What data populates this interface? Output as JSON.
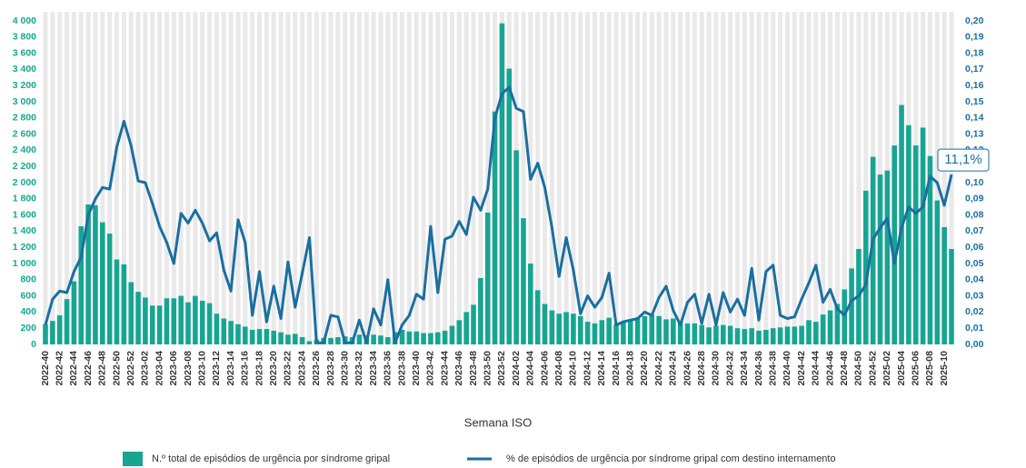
{
  "chart_data": {
    "type": "bar-line",
    "x_label": "Semana ISO",
    "annotation": "11,1%",
    "categories": [
      "2022-40",
      null,
      "2022-42",
      null,
      "2022-44",
      null,
      "2022-46",
      null,
      "2022-48",
      null,
      "2022-50",
      null,
      "2022-52",
      null,
      "2023-02",
      null,
      "2023-04",
      null,
      "2023-06",
      null,
      "2023-08",
      null,
      "2023-10",
      null,
      "2023-12",
      null,
      "2023-14",
      null,
      "2023-16",
      null,
      "2023-18",
      null,
      "2023-20",
      null,
      "2023-22",
      null,
      "2023-24",
      null,
      "2023-26",
      null,
      "2023-28",
      null,
      "2023-30",
      null,
      "2023-32",
      null,
      "2023-34",
      null,
      "2023-36",
      null,
      "2023-38",
      null,
      "2023-40",
      null,
      "2023-42",
      null,
      "2023-44",
      null,
      "2023-46",
      null,
      "2023-48",
      null,
      "2023-50",
      null,
      "2023-52",
      null,
      "2024-02",
      null,
      "2024-04",
      null,
      "2024-06",
      null,
      "2024-08",
      null,
      "2024-10",
      null,
      "2024-12",
      null,
      "2024-14",
      null,
      "2024-16",
      null,
      "2024-18",
      null,
      "2024-20",
      null,
      "2024-22",
      null,
      "2024-24",
      null,
      "2024-26",
      null,
      "2024-28",
      null,
      "2024-30",
      null,
      "2024-32",
      null,
      "2024-34",
      null,
      "2024-36",
      null,
      "2024-38",
      null,
      "2024-40",
      null,
      "2024-42",
      null,
      "2024-44",
      null,
      "2024-46",
      null,
      "2024-48",
      null,
      "2024-50",
      null,
      "2024-52",
      null,
      "2025-02",
      null,
      "2025-04",
      null,
      "2025-06",
      null,
      "2025-08",
      null,
      "2025-10",
      null
    ],
    "series": [
      {
        "name": "N.º total de episódios de urgência por síndrome gripal",
        "type": "bar",
        "color": "#17a592",
        "values": [
          250,
          290,
          360,
          560,
          780,
          1460,
          1730,
          1720,
          1510,
          1370,
          1050,
          990,
          770,
          650,
          580,
          480,
          480,
          570,
          570,
          600,
          520,
          600,
          540,
          510,
          380,
          320,
          290,
          250,
          220,
          180,
          190,
          190,
          170,
          150,
          120,
          130,
          90,
          40,
          60,
          80,
          80,
          90,
          100,
          90,
          120,
          110,
          120,
          110,
          90,
          150,
          180,
          160,
          160,
          140,
          140,
          150,
          170,
          230,
          300,
          400,
          490,
          820,
          1630,
          2880,
          3970,
          3410,
          2400,
          1560,
          1000,
          670,
          500,
          420,
          380,
          400,
          380,
          350,
          280,
          260,
          300,
          330,
          250,
          280,
          300,
          320,
          350,
          370,
          350,
          310,
          320,
          280,
          260,
          260,
          240,
          210,
          230,
          240,
          230,
          200,
          190,
          200,
          170,
          180,
          200,
          210,
          220,
          220,
          230,
          300,
          280,
          370,
          420,
          500,
          680,
          940,
          1180,
          1900,
          2320,
          2100,
          2150,
          2460,
          2960,
          2710,
          2460,
          2680,
          2330,
          1780,
          1450,
          1180
        ]
      },
      {
        "name": "% de episódios de urgência por síndrome gripal com destino internamento",
        "type": "line",
        "axis": "y2",
        "color": "#1a6fa0",
        "values": [
          0.012,
          0.028,
          0.033,
          0.032,
          0.045,
          0.054,
          0.08,
          0.09,
          0.097,
          0.096,
          0.122,
          0.138,
          0.123,
          0.101,
          0.1,
          0.087,
          0.073,
          0.063,
          0.05,
          0.081,
          0.075,
          0.083,
          0.075,
          0.064,
          0.069,
          0.046,
          0.033,
          0.077,
          0.063,
          0.018,
          0.045,
          0.014,
          0.036,
          0.016,
          0.051,
          0.023,
          0.044,
          0.066,
          0.001,
          0.001,
          0.018,
          0.017,
          0.001,
          0.001,
          0.015,
          0.001,
          0.022,
          0.012,
          0.04,
          0.001,
          0.012,
          0.018,
          0.031,
          0.028,
          0.073,
          0.032,
          0.065,
          0.067,
          0.076,
          0.068,
          0.091,
          0.083,
          0.096,
          0.14,
          0.155,
          0.159,
          0.146,
          0.144,
          0.102,
          0.112,
          0.097,
          0.072,
          0.042,
          0.066,
          0.046,
          0.019,
          0.03,
          0.023,
          0.029,
          0.044,
          0.012,
          0.014,
          0.015,
          0.016,
          0.02,
          0.018,
          0.029,
          0.036,
          0.021,
          0.012,
          0.026,
          0.031,
          0.013,
          0.031,
          0.012,
          0.032,
          0.02,
          0.028,
          0.018,
          0.047,
          0.015,
          0.045,
          0.049,
          0.018,
          0.016,
          0.017,
          0.028,
          0.038,
          0.049,
          0.026,
          0.034,
          0.022,
          0.018,
          0.027,
          0.03,
          0.037,
          0.065,
          0.072,
          0.078,
          0.05,
          0.072,
          0.085,
          0.081,
          0.085,
          0.104,
          0.1,
          0.086,
          0.105
        ]
      }
    ],
    "ylim": [
      0,
      4000
    ],
    "yticks": [
      0,
      200,
      400,
      600,
      800,
      {
        "value": 1000,
        "label": "1 000"
      },
      {
        "value": 1200,
        "label": "1 200"
      },
      {
        "value": 1400,
        "label": "1 400"
      },
      {
        "value": 1600,
        "label": "1 600"
      },
      {
        "value": 1800,
        "label": "1 800"
      },
      {
        "value": 2000,
        "label": "2 000"
      },
      {
        "value": 2200,
        "label": "2 200"
      },
      {
        "value": 2400,
        "label": "2 400"
      },
      {
        "value": 2600,
        "label": "2 600"
      },
      {
        "value": 2800,
        "label": "2 800"
      },
      {
        "value": 3000,
        "label": "3 000"
      },
      {
        "value": 3200,
        "label": "3 200"
      },
      {
        "value": 3400,
        "label": "3 400"
      },
      {
        "value": 3600,
        "label": "3 600"
      },
      {
        "value": 3800,
        "label": "3 800"
      },
      {
        "value": 4000,
        "label": "4 000"
      }
    ],
    "y2lim": [
      0,
      0.2
    ],
    "y2ticks": [
      {
        "value": 0,
        "label": "0,00"
      },
      {
        "value": 0.01,
        "label": "0,01"
      },
      {
        "value": 0.02,
        "label": "0,02"
      },
      {
        "value": 0.03,
        "label": "0,03"
      },
      {
        "value": 0.04,
        "label": "0,04"
      },
      {
        "value": 0.05,
        "label": "0,05"
      },
      {
        "value": 0.06,
        "label": "0,06"
      },
      {
        "value": 0.07,
        "label": "0,07"
      },
      {
        "value": 0.08,
        "label": "0,08"
      },
      {
        "value": 0.09,
        "label": "0,09"
      },
      {
        "value": 0.1,
        "label": "0,10"
      },
      {
        "value": 0.11,
        "label": "0,11"
      },
      {
        "value": 0.12,
        "label": "0,12"
      },
      {
        "value": 0.13,
        "label": "0,13"
      },
      {
        "value": 0.14,
        "label": "0,14"
      },
      {
        "value": 0.15,
        "label": "0,15"
      },
      {
        "value": 0.16,
        "label": "0,16"
      },
      {
        "value": 0.17,
        "label": "0,17"
      },
      {
        "value": 0.18,
        "label": "0,18"
      },
      {
        "value": 0.19,
        "label": "0,19"
      },
      {
        "value": 0.2,
        "label": "0,20"
      }
    ]
  }
}
